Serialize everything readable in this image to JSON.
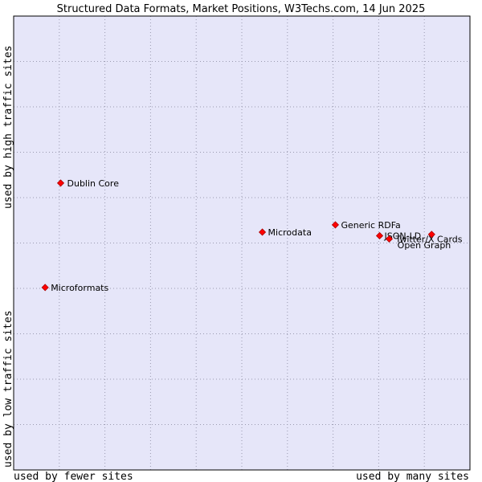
{
  "chart_data": {
    "type": "scatter",
    "title": "Structured Data Formats, Market Positions, W3Techs.com, 14 Jun 2025",
    "xlabel_left": "used by fewer sites",
    "xlabel_right": "used by many sites",
    "ylabel_bottom": "used by low traffic sites",
    "ylabel_top": "used by high traffic sites",
    "xlim": [
      0,
      100
    ],
    "ylim": [
      0,
      100
    ],
    "grid": true,
    "colors": {
      "plot_background": "#e6e6f9",
      "point_fill": "#ff0000",
      "point_stroke": "#aa0000",
      "border": "#000000"
    },
    "points": [
      {
        "label": "Dublin Core",
        "x": 10.3,
        "y": 63.2
      },
      {
        "label": "Microformats",
        "x": 6.9,
        "y": 40.2
      },
      {
        "label": "Microdata",
        "x": 54.5,
        "y": 52.4
      },
      {
        "label": "Generic RDFa",
        "x": 70.5,
        "y": 54.0
      },
      {
        "label": "JSON-LD",
        "x": 80.2,
        "y": 51.6
      },
      {
        "label": "Twitter/X Cards",
        "x": 82.3,
        "y": 50.9
      },
      {
        "label": "Open Graph",
        "x": 91.6,
        "y": 51.9
      }
    ]
  }
}
